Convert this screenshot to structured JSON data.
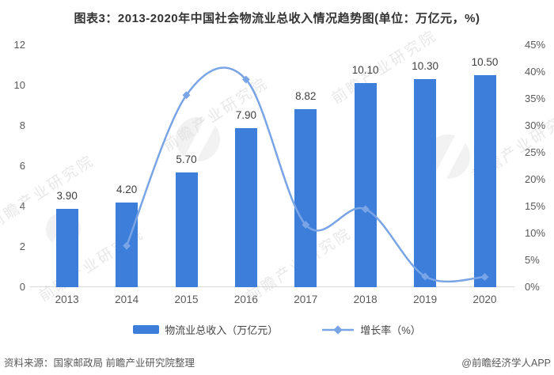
{
  "title": "图表3：2013-2020年中国社会物流业总收入情况趋势图(单位：万亿元，%)",
  "chart_data": {
    "type": "bar+line",
    "categories": [
      "2013",
      "2014",
      "2015",
      "2016",
      "2017",
      "2018",
      "2019",
      "2020"
    ],
    "series": [
      {
        "name": "物流业总收入（万亿元）",
        "type": "bar",
        "axis": "left",
        "values": [
          3.9,
          4.2,
          5.7,
          7.9,
          8.82,
          10.1,
          10.3,
          10.5
        ],
        "labels": [
          "3.90",
          "4.20",
          "5.70",
          "7.90",
          "8.82",
          "10.10",
          "10.30",
          "10.50"
        ],
        "color": "#3d7edb"
      },
      {
        "name": "增长率（%）",
        "type": "line",
        "axis": "right",
        "values": [
          null,
          7.7,
          35.7,
          38.6,
          11.6,
          14.5,
          2.0,
          1.9
        ],
        "color": "#79a4e5",
        "marker": "diamond"
      }
    ],
    "left_axis": {
      "min": 0,
      "max": 12,
      "ticks": [
        0,
        2,
        4,
        6,
        8,
        10,
        12
      ]
    },
    "right_axis": {
      "min": 0,
      "max": 45,
      "ticks": [
        0,
        5,
        10,
        15,
        20,
        25,
        30,
        35,
        40,
        45
      ],
      "suffix": "%"
    },
    "grid": false,
    "legend_position": "bottom"
  },
  "footer": {
    "source": "资料来源：国家邮政局 前瞻产业研究院整理",
    "credit": "@前瞻经济学人APP"
  },
  "watermark": {
    "text": "前瞻产业研究院"
  },
  "colors": {
    "bar": "#3d7edb",
    "line": "#79a4e5",
    "title": "#333333",
    "tick": "#595959",
    "value_label": "#404040",
    "axis_line": "#d9d9d9",
    "footer": "#595959",
    "watermark": "#c9c9c9"
  }
}
